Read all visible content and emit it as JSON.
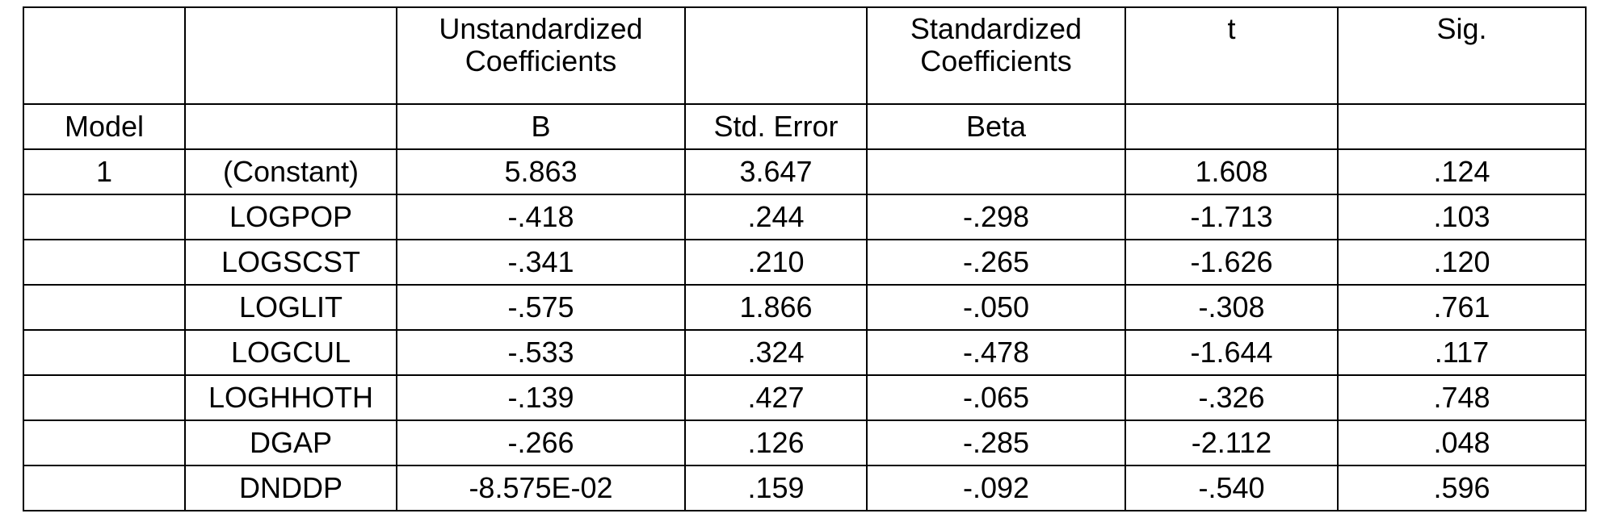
{
  "table": {
    "headers": {
      "unstandardized_line1": "Unstandardized",
      "unstandardized_line2": "Coefficients",
      "standardized_line1": "Standardized",
      "standardized_line2": "Coefficients",
      "t": "t",
      "sig": "Sig."
    },
    "subheaders": {
      "model": "Model",
      "b": "B",
      "std_error": "Std. Error",
      "beta": "Beta"
    },
    "rows": [
      {
        "model": "1",
        "variable": "(Constant)",
        "b": "5.863",
        "std_error": "3.647",
        "beta": "",
        "t": "1.608",
        "sig": ".124"
      },
      {
        "model": "",
        "variable": "LOGPOP",
        "b": "-.418",
        "std_error": ".244",
        "beta": "-.298",
        "t": "-1.713",
        "sig": ".103"
      },
      {
        "model": "",
        "variable": "LOGSCST",
        "b": "-.341",
        "std_error": ".210",
        "beta": "-.265",
        "t": "-1.626",
        "sig": ".120"
      },
      {
        "model": "",
        "variable": "LOGLIT",
        "b": "-.575",
        "std_error": "1.866",
        "beta": "-.050",
        "t": "-.308",
        "sig": ".761"
      },
      {
        "model": "",
        "variable": "LOGCUL",
        "b": "-.533",
        "std_error": ".324",
        "beta": "-.478",
        "t": "-1.644",
        "sig": ".117"
      },
      {
        "model": "",
        "variable": "LOGHHOTH",
        "b": "-.139",
        "std_error": ".427",
        "beta": "-.065",
        "t": "-.326",
        "sig": ".748"
      },
      {
        "model": "",
        "variable": "DGAP",
        "b": "-.266",
        "std_error": ".126",
        "beta": "-.285",
        "t": "-2.112",
        "sig": ".048"
      },
      {
        "model": "",
        "variable": "DNDDP",
        "b": "-8.575E-02",
        "std_error": ".159",
        "beta": "-.092",
        "t": "-.540",
        "sig": ".596"
      }
    ]
  }
}
